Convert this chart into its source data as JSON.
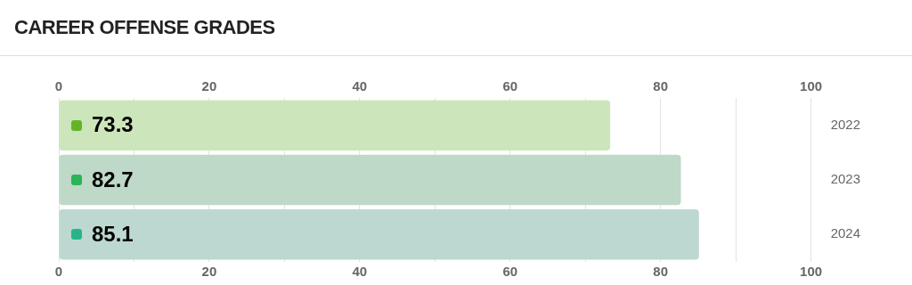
{
  "chart_data": {
    "type": "bar",
    "orientation": "horizontal",
    "title": "CAREER OFFENSE GRADES",
    "categories": [
      "2022",
      "2023",
      "2024"
    ],
    "values": [
      73.3,
      82.7,
      85.1
    ],
    "colors": [
      "#cde5bb",
      "#bed9c7",
      "#bdd8d0"
    ],
    "xlim": [
      0,
      100
    ],
    "xticks": [
      0,
      {
        "value": 10,
        "label": null
      },
      20,
      {
        "value": 30,
        "label": null
      },
      40,
      {
        "value": 50,
        "label": null
      },
      60,
      {
        "value": 70,
        "label": null
      },
      80,
      {
        "value": 90,
        "label": null
      },
      100
    ],
    "x2lim": [
      0,
      100
    ],
    "x2ticks": [
      0,
      {
        "value": 10,
        "label": null
      },
      20,
      {
        "value": 30,
        "label": null
      },
      40,
      {
        "value": 50,
        "label": null
      },
      60,
      {
        "value": 70,
        "label": null
      },
      80,
      {
        "value": 90,
        "label": null
      },
      100
    ],
    "grid": "x",
    "data_labels": true
  }
}
